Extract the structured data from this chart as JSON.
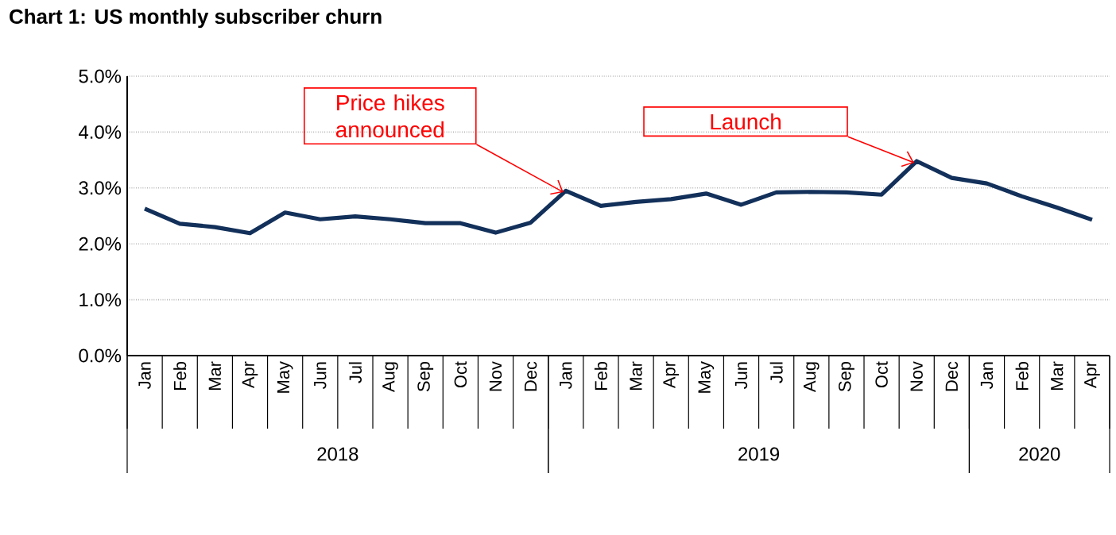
{
  "chart_data": {
    "type": "line",
    "title": "Chart 1: US monthly subscriber churn",
    "x": [
      "2018-01",
      "2018-02",
      "2018-03",
      "2018-04",
      "2018-05",
      "2018-06",
      "2018-07",
      "2018-08",
      "2018-09",
      "2018-10",
      "2018-11",
      "2018-12",
      "2019-01",
      "2019-02",
      "2019-03",
      "2019-04",
      "2019-05",
      "2019-06",
      "2019-07",
      "2019-08",
      "2019-09",
      "2019-10",
      "2019-11",
      "2019-12",
      "2020-01",
      "2020-02",
      "2020-03",
      "2020-04"
    ],
    "series": [
      {
        "color": "#12305a",
        "values": [
          2.63,
          2.36,
          2.3,
          2.19,
          2.56,
          2.44,
          2.49,
          2.44,
          2.37,
          2.37,
          2.2,
          2.38,
          2.95,
          2.68,
          2.75,
          2.8,
          2.9,
          2.7,
          2.92,
          2.93,
          2.92,
          2.88,
          3.48,
          3.18,
          3.08,
          2.85,
          2.65,
          2.43
        ]
      }
    ],
    "xlim": [
      "2017-12-16",
      "2020-04-16"
    ],
    "xticks": [
      {
        "value": "2018-01",
        "label": "Jan"
      },
      {
        "value": "2018-02",
        "label": "Feb"
      },
      {
        "value": "2018-03",
        "label": "Mar"
      },
      {
        "value": "2018-04",
        "label": "Apr"
      },
      {
        "value": "2018-05",
        "label": "May"
      },
      {
        "value": "2018-06",
        "label": "Jun"
      },
      {
        "value": "2018-07",
        "label": "Jul"
      },
      {
        "value": "2018-08",
        "label": "Aug"
      },
      {
        "value": "2018-09",
        "label": "Sep"
      },
      {
        "value": "2018-10",
        "label": "Oct"
      },
      {
        "value": "2018-11",
        "label": "Nov"
      },
      {
        "value": "2018-12",
        "label": "Dec"
      },
      {
        "value": "2019-01",
        "label": "Jan"
      },
      {
        "value": "2019-02",
        "label": "Feb"
      },
      {
        "value": "2019-03",
        "label": "Mar"
      },
      {
        "value": "2019-04",
        "label": "Apr"
      },
      {
        "value": "2019-05",
        "label": "May"
      },
      {
        "value": "2019-06",
        "label": "Jun"
      },
      {
        "value": "2019-07",
        "label": "Jul"
      },
      {
        "value": "2019-08",
        "label": "Aug"
      },
      {
        "value": "2019-09",
        "label": "Sep"
      },
      {
        "value": "2019-10",
        "label": "Oct"
      },
      {
        "value": "2019-11",
        "label": "Nov"
      },
      {
        "value": "2019-12",
        "label": "Dec"
      },
      {
        "value": "2020-01",
        "label": "Jan"
      },
      {
        "value": "2020-02",
        "label": "Feb"
      },
      {
        "value": "2020-03",
        "label": "Mar"
      },
      {
        "value": "2020-04",
        "label": "Apr"
      }
    ],
    "ylim": [
      0,
      5
    ],
    "yticks": [
      {
        "value": 0,
        "label": "0.0%"
      },
      {
        "value": 1,
        "label": "1.0%"
      },
      {
        "value": 2,
        "label": "2.0%"
      },
      {
        "value": 3,
        "label": "3.0%"
      },
      {
        "value": 4,
        "label": "4.0%"
      },
      {
        "value": 5,
        "label": "5.0%"
      }
    ],
    "grid": "y",
    "marker": "none",
    "line_style": "solid",
    "annotations": [
      "Price hikes announced",
      "Launch",
      "2018",
      "2019",
      "2020"
    ]
  }
}
